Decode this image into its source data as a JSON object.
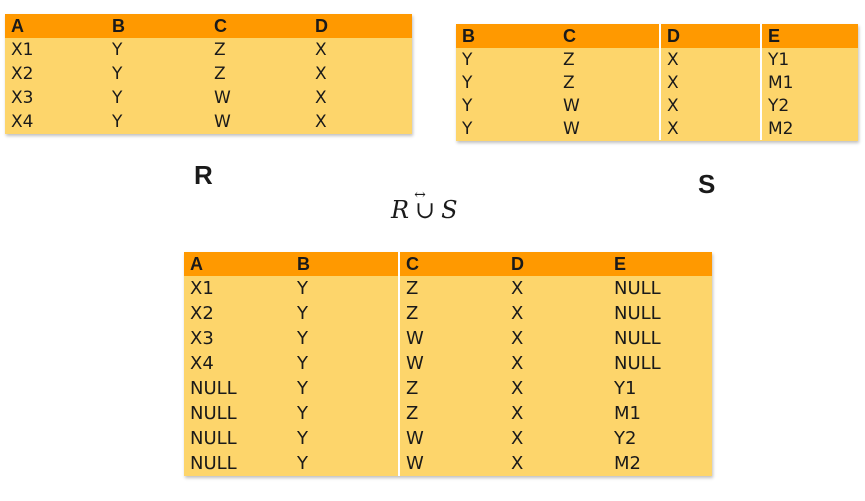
{
  "table_r": {
    "name": "R",
    "headers": [
      "A",
      "B",
      "C",
      "D"
    ],
    "rows": [
      [
        "X1",
        "Y",
        "Z",
        "X"
      ],
      [
        "X2",
        "Y",
        "Z",
        "X"
      ],
      [
        "X3",
        "Y",
        "W",
        "X"
      ],
      [
        "X4",
        "Y",
        "W",
        "X"
      ]
    ]
  },
  "table_s": {
    "name": "S",
    "headers": [
      "B",
      "C",
      "D",
      "E"
    ],
    "rows": [
      [
        "Y",
        "Z",
        "X",
        "Y1"
      ],
      [
        "Y",
        "Z",
        "X",
        "M1"
      ],
      [
        "Y",
        "W",
        "X",
        "Y2"
      ],
      [
        "Y",
        "W",
        "X",
        "M2"
      ]
    ]
  },
  "formula": {
    "left": "R",
    "operator": "∪",
    "arrow": "↔",
    "right": "S"
  },
  "result": {
    "headers": [
      "A",
      "B",
      "C",
      "D",
      "E"
    ],
    "rows": [
      [
        "X1",
        "Y",
        "Z",
        "X",
        "NULL"
      ],
      [
        "X2",
        "Y",
        "Z",
        "X",
        "NULL"
      ],
      [
        "X3",
        "Y",
        "W",
        "X",
        "NULL"
      ],
      [
        "X4",
        "Y",
        "W",
        "X",
        "NULL"
      ],
      [
        "NULL",
        "Y",
        "Z",
        "X",
        "Y1"
      ],
      [
        "NULL",
        "Y",
        "Z",
        "X",
        "M1"
      ],
      [
        "NULL",
        "Y",
        "W",
        "X",
        "Y2"
      ],
      [
        "NULL",
        "Y",
        "W",
        "X",
        "M2"
      ]
    ]
  },
  "colors": {
    "header": "#ff9900",
    "body": "#fdd56b"
  }
}
